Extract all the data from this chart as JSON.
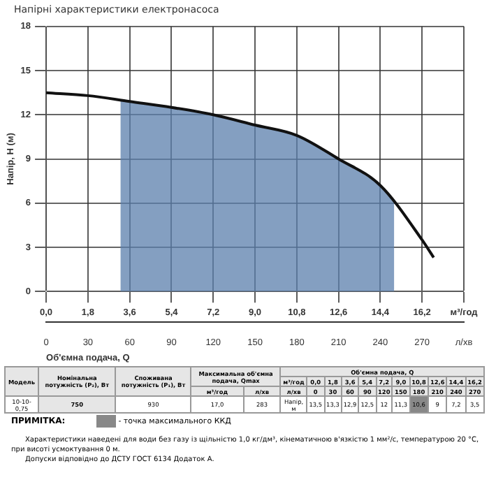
{
  "chart_data": {
    "type": "line",
    "title": "Напірні характеристики електронасоса",
    "xlabel": "Об'ємна подача, Q",
    "ylabel": "Напір, H (м)",
    "xlim": [
      0,
      18
    ],
    "xticks": [
      {
        "value": 0,
        "label": "0,0"
      },
      {
        "value": 1.8,
        "label": "1,8"
      },
      {
        "value": 3.6,
        "label": "3,6"
      },
      {
        "value": 5.4,
        "label": "5,4"
      },
      {
        "value": 7.2,
        "label": "7,2"
      },
      {
        "value": 9,
        "label": "9,0"
      },
      {
        "value": 10.8,
        "label": "10,8"
      },
      {
        "value": 12.6,
        "label": "12,6"
      },
      {
        "value": 14.4,
        "label": "14,4"
      },
      {
        "value": 16.2,
        "label": "16,2"
      },
      {
        "value": 18,
        "label": "м³/год"
      }
    ],
    "x2lim": [
      0,
      300
    ],
    "x2ticks": [
      0,
      30,
      60,
      90,
      120,
      150,
      180,
      210,
      240,
      270,
      {
        "value": 300,
        "label": "л/хв"
      }
    ],
    "ylim": [
      0,
      18
    ],
    "yticks": [
      0,
      3,
      6,
      9,
      12,
      15,
      18
    ],
    "grid": true,
    "legend": false,
    "marker": "none",
    "line_style": "solid",
    "series": [
      {
        "type": "line",
        "color": "#111111",
        "x": [
          0,
          1.8,
          3.6,
          5.4,
          7.2,
          9,
          10.8,
          12.6,
          14.4,
          16.2,
          16.7
        ],
        "values": [
          13.5,
          13.3,
          12.9,
          12.5,
          12,
          11.3,
          10.6,
          9,
          7.2,
          3.5,
          2.3
        ]
      },
      {
        "type": "area",
        "color": "#5b80ad",
        "x": [
          3.2,
          5.4,
          7.2,
          9,
          10.8,
          12.6,
          14.4,
          15
        ],
        "values": [
          13,
          12.5,
          12,
          11.3,
          10.6,
          9,
          7.2,
          6.2
        ]
      }
    ],
    "annotations": [
      "Модель",
      "Номінальна потужність (P₂), Вт",
      "Споживана потужність (P₁), Вт",
      "Максимальна об'ємна подача, Qmax",
      "Об'ємна подача, Q",
      "м³/год",
      "0,0",
      "1,8",
      "3,6",
      "5,4",
      "7,2",
      "9,0",
      "10,8",
      "12,6",
      "14,4",
      "16,2",
      "м³/год",
      "л/хв",
      "л/хв",
      "0",
      "30",
      "60",
      "90",
      "120",
      "150",
      "180",
      "210",
      "240",
      "270",
      "10-10-0,75",
      "750",
      "930",
      "17,0",
      "283",
      "Напір, м",
      "13,5",
      "13,3",
      "12,9",
      "12,5",
      "12",
      "11,3",
      "10,6",
      "9",
      "7,2",
      "3,5",
      "ПРИМІТКА:",
      "- точка максимального ККД",
      "Характеристики наведені для води без газу із щільністю 1,0 кг/дм³, кінематичною в'язкістю 1 мм²/с, температурою 20 °С, при висоті усмоктування 0 м.",
      "Допуски відповідно до ДСТУ ГОСТ 6134 Додаток А."
    ]
  }
}
